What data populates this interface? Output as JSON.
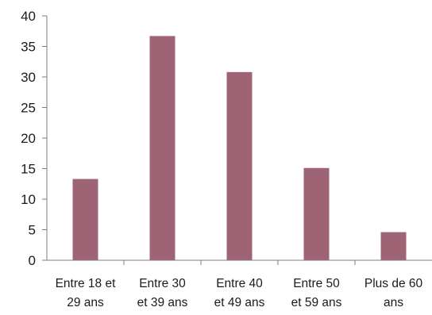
{
  "chart_data": {
    "type": "bar",
    "categories": [
      [
        "Entre 18 et",
        "29 ans"
      ],
      [
        "Entre 30",
        "et 39 ans"
      ],
      [
        "Entre 40",
        "et 49 ans"
      ],
      [
        "Entre 50",
        "et 59 ans"
      ],
      [
        "Plus de 60",
        "ans"
      ]
    ],
    "values": [
      13.3,
      36.7,
      30.8,
      15.1,
      4.6
    ],
    "ylim": [
      0,
      40
    ],
    "yticks": [
      "0",
      "5",
      "10",
      "15",
      "20",
      "25",
      "30",
      "35",
      "40"
    ],
    "grid": false,
    "legend": "none",
    "bar_color": "#9e6375"
  }
}
